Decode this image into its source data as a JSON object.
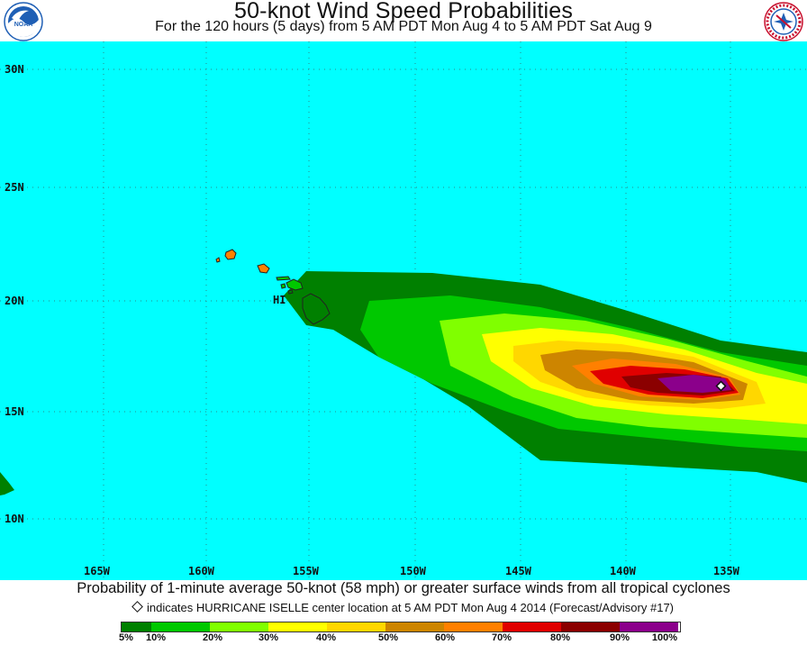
{
  "title": "50-knot Wind Speed Probabilities",
  "subtitle": "For the 120 hours (5 days) from 5 AM PDT Mon Aug 4 to 5 AM PDT Sat Aug 9",
  "logos": {
    "left": {
      "text": "NOAA",
      "color": "#1f5fb5"
    },
    "right": {
      "text": "NATIONAL WEATHER SERVICE",
      "color": "#c8102e"
    }
  },
  "map": {
    "ocean_color": "#00ffff",
    "lat_labels": [
      "30N",
      "25N",
      "20N",
      "15N",
      "10N"
    ],
    "lon_labels": [
      "165W",
      "160W",
      "155W",
      "150W",
      "145W",
      "140W",
      "135W"
    ],
    "place_label": "HI",
    "storm_marker": "storm-center-diamond"
  },
  "caption": {
    "line1": "Probability of 1-minute average 50-knot (58 mph) or greater surface winds from all tropical cyclones",
    "line2": "indicates HURRICANE ISELLE center location at 5 AM PDT Mon Aug 4 2014 (Forecast/Advisory #17)"
  },
  "legend": {
    "colors": [
      "#008000",
      "#00c800",
      "#80ff00",
      "#ffff00",
      "#ffd700",
      "#cd8500",
      "#ff8000",
      "#e00000",
      "#8b0000",
      "#8b008b"
    ],
    "labels": [
      "5%",
      "10%",
      "20%",
      "30%",
      "40%",
      "50%",
      "60%",
      "70%",
      "80%",
      "90%",
      "100%"
    ]
  }
}
